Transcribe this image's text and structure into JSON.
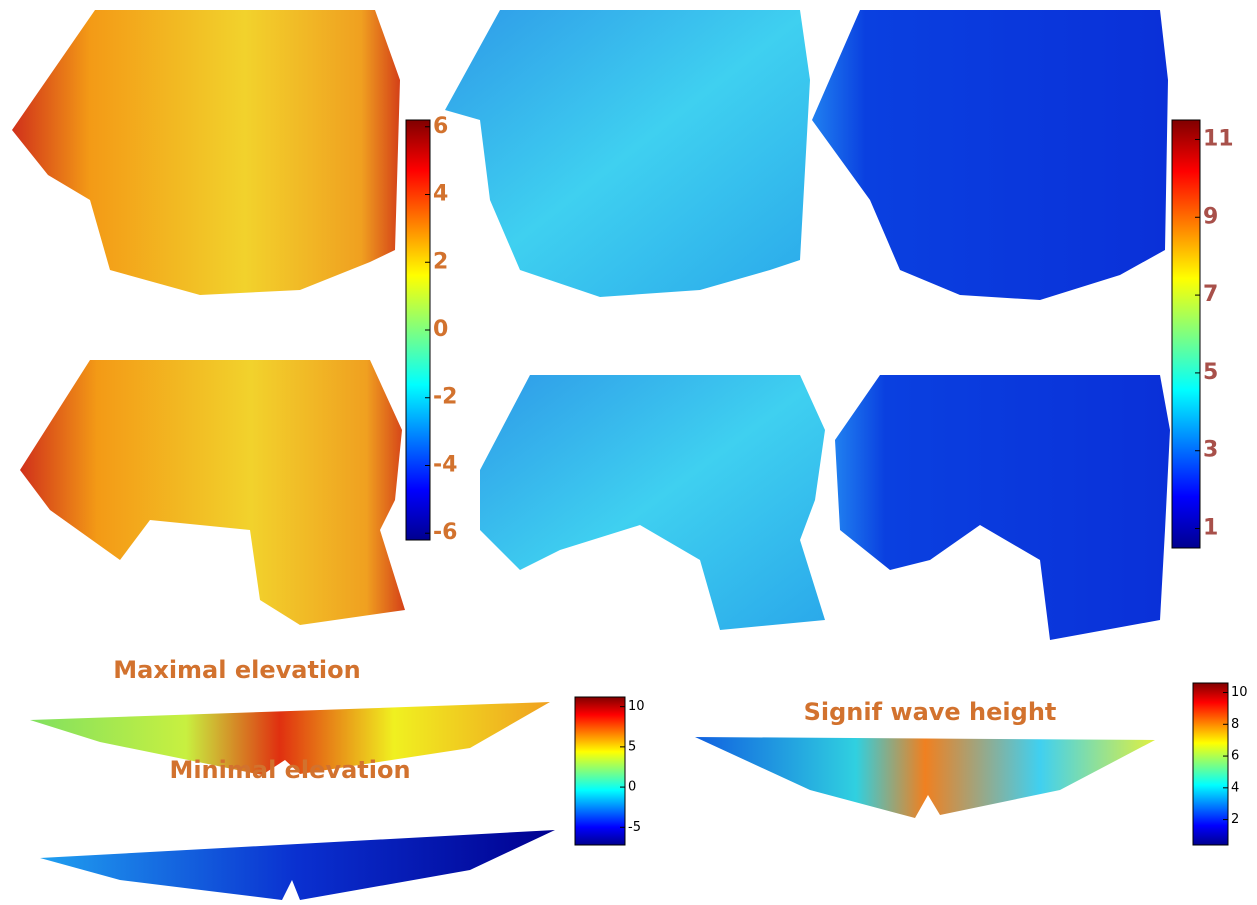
{
  "panels": {
    "max_title": "Maximal elevation",
    "min_title": "Minimal elevation",
    "wave_title": "Signif wave height"
  },
  "colorbars": [
    {
      "lim": [
        -6.2,
        6.2
      ],
      "ticks": [
        6,
        4,
        2,
        0,
        -2,
        -4,
        -6
      ]
    },
    {
      "lim": [
        0.5,
        11.5
      ],
      "ticks": [
        11,
        9,
        7,
        5,
        3,
        1
      ]
    },
    {
      "lim": [
        -7.2,
        11.2
      ],
      "ticks": [
        10,
        5,
        0,
        -5
      ]
    },
    {
      "lim": [
        0.4,
        10.6
      ],
      "ticks": [
        10,
        8,
        6,
        4,
        2
      ]
    }
  ]
}
